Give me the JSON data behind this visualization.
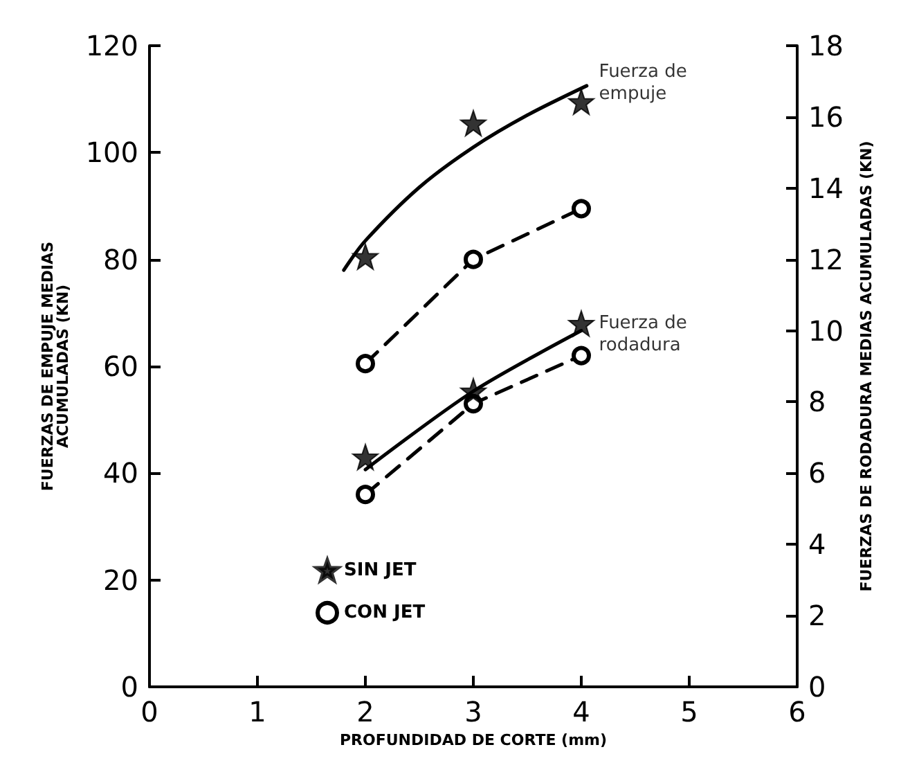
{
  "chart_data": {
    "type": "scatter",
    "xlabel": "PROFUNDIDAD DE CORTE (mm)",
    "ylabel": "FUERZAS DE EMPUJE MEDIAS\nACUMULADAS (KN)",
    "y2label": "FUERZAS DE RODADURA MEDIAS ACUMULADAS (KN)",
    "x": [
      2,
      3,
      4
    ],
    "series": [
      {
        "name": "SIN JET",
        "marker": "star",
        "color": "#000000",
        "values": [
          80.5,
          105.5,
          109.5
        ]
      },
      {
        "name": "CON JET",
        "type": "line",
        "marker": "circle",
        "line_style": "dashed",
        "color": "#000000",
        "values": [
          60.5,
          80,
          89.5
        ]
      },
      {
        "marker": "star",
        "color": "#000000",
        "axis": "y2",
        "values": [
          6.45,
          8.3,
          10.2
        ]
      },
      {
        "type": "line",
        "marker": "circle",
        "line_style": "dashed",
        "color": "#000000",
        "axis": "y2",
        "values": [
          5.4,
          7.95,
          9.3
        ]
      },
      {
        "type": "line",
        "marker": "none",
        "line_style": "solid",
        "color": "#000000",
        "x": [
          1.8,
          2,
          2.5,
          3,
          3.5,
          4.05
        ],
        "values": [
          78,
          83.5,
          93.5,
          101,
          107,
          112.5
        ]
      },
      {
        "type": "line",
        "marker": "none",
        "line_style": "solid",
        "color": "#000000",
        "axis": "y2",
        "x": [
          2,
          3,
          4
        ],
        "values": [
          6.1,
          8.3,
          10
        ]
      }
    ],
    "annotations": [
      {
        "text": "Fuerza de\nempuje",
        "x": 4.1,
        "y": 113
      },
      {
        "text": "Fuerza de\nrodadura",
        "x": 4.1,
        "y": 66
      }
    ],
    "xlim": [
      0,
      6
    ],
    "xticks": [
      0,
      1,
      2,
      3,
      4,
      5,
      6
    ],
    "ylim": [
      0,
      120
    ],
    "yticks": [
      0,
      20,
      40,
      60,
      80,
      100,
      120
    ],
    "y2lim": [
      0,
      18
    ],
    "y2ticks": [
      0,
      2,
      4,
      6,
      8,
      10,
      12,
      14,
      16,
      18
    ],
    "grid": false,
    "legend": "bottom left"
  }
}
